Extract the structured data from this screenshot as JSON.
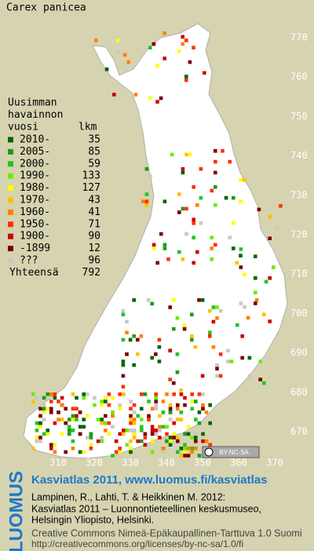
{
  "title": "Carex panicea",
  "legend": {
    "heading": [
      "Uusimman",
      "havainnon",
      "vuosi"
    ],
    "count_heading": "lkm",
    "entries": [
      {
        "label": "2010-",
        "count": 35,
        "color": "#006400"
      },
      {
        "label": "2005-",
        "count": 85,
        "color": "#1a9c1a"
      },
      {
        "label": "2000-",
        "count": 59,
        "color": "#22c422"
      },
      {
        "label": "1990-",
        "count": 133,
        "color": "#66ee00"
      },
      {
        "label": "1980-",
        "count": 127,
        "color": "#ffff00"
      },
      {
        "label": "1970-",
        "count": 43,
        "color": "#ffc000"
      },
      {
        "label": "1960-",
        "count": 41,
        "color": "#ff7f00"
      },
      {
        "label": "1950-",
        "count": 71,
        "color": "#ff3000"
      },
      {
        "label": "1900-",
        "count": 90,
        "color": "#cc0000"
      },
      {
        "label": "-1899",
        "count": 12,
        "color": "#7a0000"
      },
      {
        "label": "???",
        "count": 96,
        "color": "#c8c8c8"
      }
    ],
    "total_label": "Yhteensä",
    "total": 792
  },
  "grid_y_labels": [
    770,
    760,
    750,
    740,
    730,
    720,
    710,
    700,
    690,
    680,
    670
  ],
  "grid_x_labels": [
    310,
    320,
    330,
    340,
    350,
    360,
    370
  ],
  "license_badge": "BY-NC-SA",
  "footer": {
    "brand": "LUOMUS",
    "headline": "Kasviatlas 2011, www.luomus.fi/kasviatlas",
    "citation": [
      "Lampinen, R., Lahti, T. & Heikkinen M. 2012:",
      "Kasviatlas 2011 – Luonnontieteellinen keskusmuseo,",
      "Helsingin Yliopisto, Helsinki."
    ],
    "license": [
      "Creative Commons Nimeä-Epäkaupallinen-Tarttuva 1.0 Suomi",
      "http://creativecommons.org/licenses/by-nc-sa/1.0/fi"
    ]
  }
}
